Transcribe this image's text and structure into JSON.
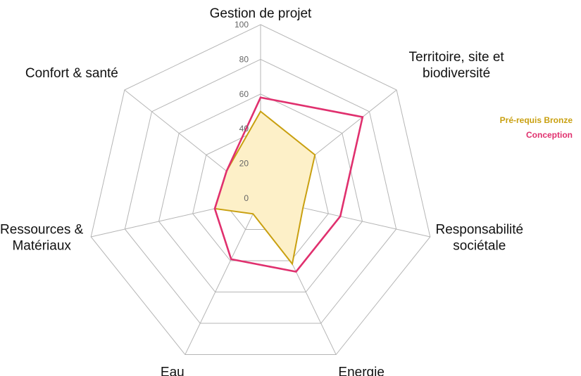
{
  "chart_data": {
    "type": "radar",
    "title": "",
    "axes": [
      "Gestion de projet",
      "Territoire, site et biodiversité",
      "Responsabilité sociétale",
      "Energie",
      "Eau",
      "Ressources & Matériaux",
      "Confort & santé"
    ],
    "axis_label_lines": [
      [
        "Gestion de projet"
      ],
      [
        "Territoire, site et",
        "biodiversité"
      ],
      [
        "Responsabilité",
        "sociétale"
      ],
      [
        "Energie"
      ],
      [
        "Eau"
      ],
      [
        "Ressources &",
        "Matériaux"
      ],
      [
        "Confort & santé"
      ]
    ],
    "rlim": [
      0,
      100
    ],
    "ticks": [
      0,
      20,
      40,
      60,
      80,
      100
    ],
    "grid": true,
    "legend_position": "right",
    "series": [
      {
        "name": "Pré-requis Bronze",
        "color": "#c9a010",
        "fill": "#fdf0c8",
        "values": [
          50,
          40,
          25,
          42,
          10,
          27,
          25
        ]
      },
      {
        "name": "Conception",
        "color": "#e0306e",
        "fill": "none",
        "values": [
          58,
          75,
          47,
          47,
          39,
          27,
          25
        ]
      }
    ]
  }
}
